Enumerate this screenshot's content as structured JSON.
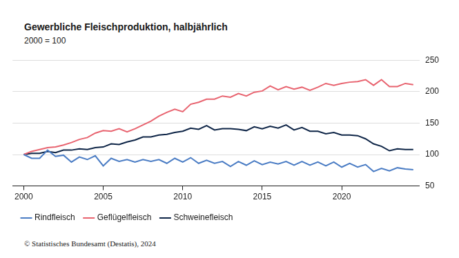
{
  "chart_data": {
    "type": "line",
    "title": "Gewerbliche Fleischproduktion, halbjährlich",
    "subtitle": "2000 = 100",
    "source": "© Statistisches Bundesamt (Destatis), 2024",
    "x": [
      2000,
      2000.5,
      2001,
      2001.5,
      2002,
      2002.5,
      2003,
      2003.5,
      2004,
      2004.5,
      2005,
      2005.5,
      2006,
      2006.5,
      2007,
      2007.5,
      2008,
      2008.5,
      2009,
      2009.5,
      2010,
      2010.5,
      2011,
      2011.5,
      2012,
      2012.5,
      2013,
      2013.5,
      2014,
      2014.5,
      2015,
      2015.5,
      2016,
      2016.5,
      2017,
      2017.5,
      2018,
      2018.5,
      2019,
      2019.5,
      2020,
      2020.5,
      2021,
      2021.5,
      2022,
      2022.5,
      2023,
      2023.5,
      2024,
      2024.5
    ],
    "series": [
      {
        "name": "Rindfleisch",
        "color": "#4a7cc4",
        "values": [
          100,
          94,
          94,
          107,
          97,
          99,
          88,
          96,
          92,
          98,
          82,
          94,
          89,
          92,
          88,
          92,
          89,
          92,
          86,
          94,
          88,
          95,
          86,
          91,
          86,
          89,
          81,
          89,
          83,
          90,
          84,
          88,
          85,
          89,
          83,
          89,
          83,
          88,
          82,
          88,
          80,
          86,
          80,
          84,
          73,
          78,
          74,
          79,
          77,
          76
        ]
      },
      {
        "name": "Geflügelfleisch",
        "color": "#e8636f",
        "values": [
          100,
          105,
          108,
          111,
          112,
          115,
          119,
          124,
          127,
          134,
          138,
          137,
          141,
          136,
          141,
          147,
          153,
          161,
          167,
          172,
          168,
          180,
          183,
          188,
          188,
          193,
          191,
          197,
          193,
          199,
          201,
          209,
          203,
          208,
          204,
          207,
          202,
          207,
          213,
          210,
          213,
          215,
          216,
          219,
          210,
          219,
          208,
          208,
          213,
          211
        ]
      },
      {
        "name": "Schweinefleisch",
        "color": "#0d2446",
        "values": [
          100,
          102,
          102,
          105,
          103,
          107,
          107,
          109,
          108,
          111,
          112,
          117,
          116,
          120,
          123,
          128,
          128,
          131,
          132,
          135,
          137,
          142,
          140,
          146,
          139,
          141,
          141,
          140,
          138,
          144,
          141,
          145,
          142,
          147,
          139,
          143,
          137,
          137,
          133,
          135,
          131,
          131,
          130,
          125,
          117,
          113,
          106,
          109,
          108,
          108
        ]
      }
    ],
    "xlim": [
      1999.3,
      2024.9
    ],
    "xticks": [
      2000,
      2005,
      2010,
      2015,
      2020
    ],
    "ylim": [
      50,
      250
    ],
    "yticks": [
      50,
      100,
      150,
      200,
      250
    ],
    "grid": true,
    "legend": "bottom"
  }
}
